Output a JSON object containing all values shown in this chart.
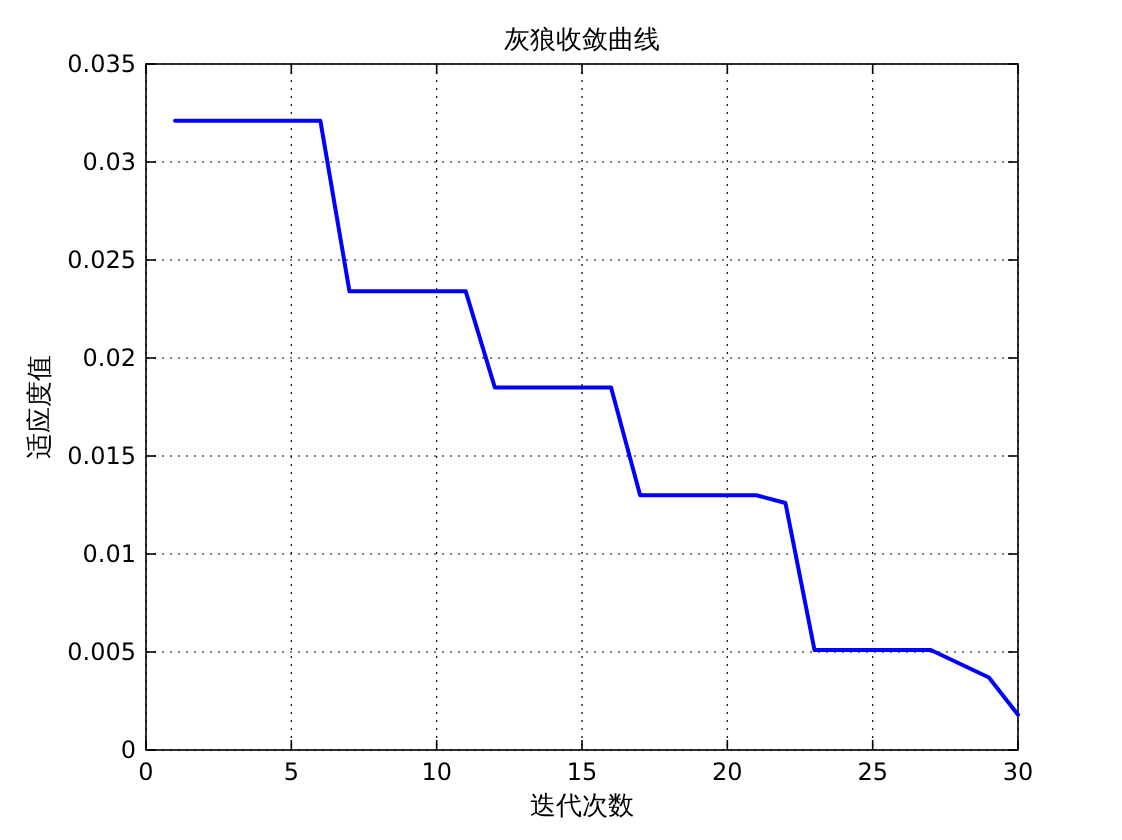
{
  "chart_data": {
    "type": "line",
    "title": "灰狼收敛曲线",
    "xlabel": "迭代次数",
    "ylabel": "适应度值",
    "x": [
      1,
      2,
      3,
      4,
      5,
      6,
      7,
      8,
      9,
      10,
      11,
      12,
      13,
      14,
      15,
      16,
      17,
      18,
      19,
      20,
      21,
      22,
      23,
      24,
      25,
      26,
      27,
      28,
      29,
      30
    ],
    "series": [
      {
        "color": "#0000ff",
        "values": [
          0.0321,
          0.0321,
          0.0321,
          0.0321,
          0.0321,
          0.0321,
          0.0234,
          0.0234,
          0.0234,
          0.0234,
          0.0234,
          0.0185,
          0.0185,
          0.0185,
          0.0185,
          0.0185,
          0.013,
          0.013,
          0.013,
          0.013,
          0.013,
          0.0126,
          0.0051,
          0.0051,
          0.0051,
          0.0051,
          0.0051,
          0.0044,
          0.0037,
          0.0018
        ]
      }
    ],
    "xlim": [
      0,
      30
    ],
    "ylim": [
      0,
      0.035
    ],
    "xticks": [
      0,
      5,
      10,
      15,
      20,
      25,
      30
    ],
    "yticks": [
      0,
      0.005,
      0.01,
      0.015,
      0.02,
      0.025,
      0.03,
      0.035
    ],
    "grid": true,
    "line_style": "solid"
  }
}
